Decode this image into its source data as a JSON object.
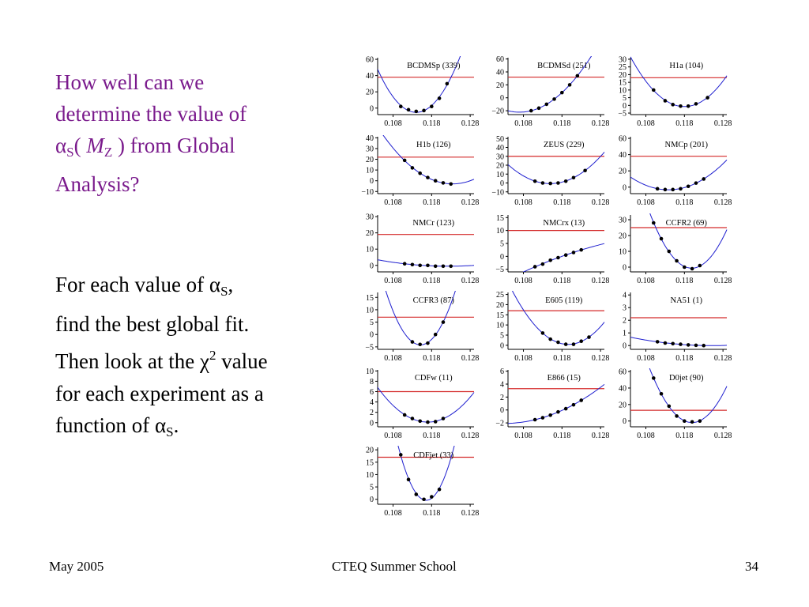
{
  "slide": {
    "heading_lines": [
      "How well can we",
      "determine the value of",
      " from Global",
      "Analysis?"
    ],
    "alpha_symbol": "α",
    "alpha_sub": "S",
    "open_paren": "( ",
    "mz_symbol": "M",
    "mz_sub": "Z",
    "close_paren": " )",
    "body_line1_a": "For each value of ",
    "body_line1_b": ",",
    "body_line2": "find the best global fit.",
    "body_line3_a": "Then look at the ",
    "chi_symbol": "χ",
    "chi_sup": "2",
    "body_line3_b": " value",
    "body_line4": "for each experiment as a",
    "body_line5": "function of ",
    "body_line5_end": ".",
    "colors": {
      "heading": "#7a1a8c",
      "body": "#000000"
    }
  },
  "footer": {
    "left": "May 2005",
    "center": "CTEQ Summer School",
    "right": "34"
  },
  "chart_data": [
    {
      "type": "scatter",
      "title": "BCDMSp (339)",
      "x_ticks": [
        "0.108",
        "0.118",
        "0.128"
      ],
      "y_ticks": [
        "60",
        "40",
        "20",
        "0"
      ],
      "xlim": [
        0.104,
        0.129
      ],
      "ylim": [
        -8,
        62
      ],
      "reference": 38,
      "points": [
        [
          0.11,
          2
        ],
        [
          0.112,
          -2
        ],
        [
          0.114,
          -4
        ],
        [
          0.116,
          -3
        ],
        [
          0.118,
          2
        ],
        [
          0.12,
          12
        ],
        [
          0.122,
          30
        ]
      ]
    },
    {
      "type": "scatter",
      "title": "BCDMSd (251)",
      "x_ticks": [
        "0.108",
        "0.118",
        "0.128"
      ],
      "y_ticks": [
        "60",
        "40",
        "20",
        "0",
        "−20"
      ],
      "xlim": [
        0.104,
        0.129
      ],
      "ylim": [
        -26,
        62
      ],
      "reference": 32,
      "points": [
        [
          0.11,
          -20
        ],
        [
          0.112,
          -16
        ],
        [
          0.114,
          -10
        ],
        [
          0.116,
          -2
        ],
        [
          0.118,
          8
        ],
        [
          0.12,
          20
        ],
        [
          0.122,
          34
        ]
      ]
    },
    {
      "type": "scatter",
      "title": "H1a (104)",
      "x_ticks": [
        "0.108",
        "0.118",
        "0.128"
      ],
      "y_ticks": [
        "30",
        "25",
        "20",
        "15",
        "10",
        "5",
        "0",
        "−5"
      ],
      "xlim": [
        0.104,
        0.129
      ],
      "ylim": [
        -6,
        31
      ],
      "reference": 18,
      "points": [
        [
          0.11,
          10
        ],
        [
          0.113,
          3
        ],
        [
          0.115,
          0.5
        ],
        [
          0.117,
          -0.5
        ],
        [
          0.119,
          -0.5
        ],
        [
          0.121,
          1
        ],
        [
          0.124,
          5
        ]
      ]
    },
    {
      "type": "scatter",
      "title": "H1b (126)",
      "x_ticks": [
        "0.108",
        "0.118",
        "0.128"
      ],
      "y_ticks": [
        "40",
        "30",
        "20",
        "10",
        "0",
        "−10"
      ],
      "xlim": [
        0.104,
        0.129
      ],
      "ylim": [
        -12,
        41
      ],
      "reference": 22,
      "points": [
        [
          0.111,
          19
        ],
        [
          0.113,
          12
        ],
        [
          0.115,
          7
        ],
        [
          0.117,
          3
        ],
        [
          0.119,
          0
        ],
        [
          0.121,
          -2
        ],
        [
          0.123,
          -3
        ]
      ]
    },
    {
      "type": "scatter",
      "title": "ZEUS (229)",
      "x_ticks": [
        "0.108",
        "0.118",
        "0.128"
      ],
      "y_ticks": [
        "50",
        "40",
        "30",
        "20",
        "10",
        "0",
        "−10"
      ],
      "xlim": [
        0.104,
        0.129
      ],
      "ylim": [
        -12,
        52
      ],
      "reference": 30,
      "points": [
        [
          0.111,
          2
        ],
        [
          0.113,
          0
        ],
        [
          0.115,
          -0.5
        ],
        [
          0.117,
          0
        ],
        [
          0.119,
          2
        ],
        [
          0.121,
          6
        ],
        [
          0.124,
          14
        ]
      ]
    },
    {
      "type": "scatter",
      "title": "NMCp (201)",
      "x_ticks": [
        "0.108",
        "0.118",
        "0.128"
      ],
      "y_ticks": [
        "60",
        "40",
        "20",
        "0"
      ],
      "xlim": [
        0.104,
        0.129
      ],
      "ylim": [
        -8,
        62
      ],
      "reference": 38,
      "points": [
        [
          0.111,
          -2
        ],
        [
          0.113,
          -3
        ],
        [
          0.115,
          -3
        ],
        [
          0.117,
          -2
        ],
        [
          0.119,
          1
        ],
        [
          0.121,
          5
        ],
        [
          0.123,
          10
        ]
      ]
    },
    {
      "type": "scatter",
      "title": "NMCr (123)",
      "x_ticks": [
        "0.108",
        "0.118",
        "0.128"
      ],
      "y_ticks": [
        "30",
        "20",
        "10",
        "0"
      ],
      "xlim": [
        0.104,
        0.129
      ],
      "ylim": [
        -4,
        31
      ],
      "reference": 19,
      "points": [
        [
          0.111,
          1
        ],
        [
          0.113,
          0.5
        ],
        [
          0.115,
          0
        ],
        [
          0.117,
          0
        ],
        [
          0.119,
          -0.5
        ],
        [
          0.121,
          -0.5
        ],
        [
          0.123,
          -0.5
        ]
      ]
    },
    {
      "type": "scatter",
      "title": "NMCrx (13)",
      "x_ticks": [
        "0.108",
        "0.118",
        "0.128"
      ],
      "y_ticks": [
        "15",
        "10",
        "5",
        "0",
        "−5"
      ],
      "xlim": [
        0.104,
        0.129
      ],
      "ylim": [
        -6,
        16
      ],
      "reference": 10,
      "points": [
        [
          0.111,
          -4
        ],
        [
          0.113,
          -3
        ],
        [
          0.115,
          -1.5
        ],
        [
          0.117,
          -0.5
        ],
        [
          0.119,
          0.5
        ],
        [
          0.121,
          1.5
        ],
        [
          0.123,
          2.5
        ]
      ]
    },
    {
      "type": "scatter",
      "title": "CCFR2 (69)",
      "x_ticks": [
        "0.108",
        "0.118",
        "0.128"
      ],
      "y_ticks": [
        "30",
        "20",
        "10",
        "0"
      ],
      "xlim": [
        0.104,
        0.129
      ],
      "ylim": [
        -3,
        33
      ],
      "reference": 25,
      "points": [
        [
          0.11,
          28
        ],
        [
          0.112,
          18
        ],
        [
          0.114,
          10
        ],
        [
          0.116,
          4
        ],
        [
          0.118,
          0
        ],
        [
          0.12,
          -1
        ],
        [
          0.122,
          1
        ]
      ]
    },
    {
      "type": "scatter",
      "title": "CCFR3 (87)",
      "x_ticks": [
        "0.108",
        "0.118",
        "0.128"
      ],
      "y_ticks": [
        "15",
        "10",
        "5",
        "0",
        "−5"
      ],
      "xlim": [
        0.104,
        0.129
      ],
      "ylim": [
        -6,
        17
      ],
      "reference": 7,
      "points": [
        [
          0.113,
          -3
        ],
        [
          0.115,
          -4
        ],
        [
          0.117,
          -3.5
        ],
        [
          0.119,
          0
        ],
        [
          0.121,
          5
        ]
      ]
    },
    {
      "type": "scatter",
      "title": "E605 (119)",
      "x_ticks": [
        "0.108",
        "0.118",
        "0.128"
      ],
      "y_ticks": [
        "25",
        "20",
        "15",
        "10",
        "5",
        "0"
      ],
      "xlim": [
        0.104,
        0.129
      ],
      "ylim": [
        -2,
        26
      ],
      "reference": 17,
      "points": [
        [
          0.113,
          6
        ],
        [
          0.115,
          3
        ],
        [
          0.117,
          1.5
        ],
        [
          0.119,
          0.5
        ],
        [
          0.121,
          0.5
        ],
        [
          0.123,
          2
        ],
        [
          0.125,
          4
        ]
      ]
    },
    {
      "type": "scatter",
      "title": "NA51 (1)",
      "x_ticks": [
        "0.108",
        "0.118",
        "0.128"
      ],
      "y_ticks": [
        "4",
        "3",
        "2",
        "1",
        "0"
      ],
      "xlim": [
        0.104,
        0.129
      ],
      "ylim": [
        -0.3,
        4.2
      ],
      "reference": 2.2,
      "points": [
        [
          0.111,
          0.3
        ],
        [
          0.113,
          0.2
        ],
        [
          0.115,
          0.15
        ],
        [
          0.117,
          0.1
        ],
        [
          0.119,
          0.05
        ],
        [
          0.121,
          0.02
        ],
        [
          0.123,
          0
        ]
      ]
    },
    {
      "type": "scatter",
      "title": "CDFw (11)",
      "x_ticks": [
        "0.108",
        "0.118",
        "0.128"
      ],
      "y_ticks": [
        "10",
        "8",
        "6",
        "4",
        "2",
        "0"
      ],
      "xlim": [
        0.104,
        0.129
      ],
      "ylim": [
        -0.8,
        10.2
      ],
      "reference": 6,
      "points": [
        [
          0.111,
          1.5
        ],
        [
          0.113,
          0.8
        ],
        [
          0.115,
          0.3
        ],
        [
          0.117,
          0.1
        ],
        [
          0.119,
          0.2
        ],
        [
          0.121,
          0.8
        ]
      ]
    },
    {
      "type": "scatter",
      "title": "E866 (15)",
      "x_ticks": [
        "0.108",
        "0.118",
        "0.128"
      ],
      "y_ticks": [
        "6",
        "4",
        "2",
        "0",
        "−2"
      ],
      "xlim": [
        0.104,
        0.129
      ],
      "ylim": [
        -2.6,
        6.2
      ],
      "reference": 3.3,
      "points": [
        [
          0.111,
          -1.5
        ],
        [
          0.113,
          -1.2
        ],
        [
          0.115,
          -0.8
        ],
        [
          0.117,
          -0.3
        ],
        [
          0.119,
          0.2
        ],
        [
          0.121,
          0.8
        ],
        [
          0.123,
          1.5
        ]
      ]
    },
    {
      "type": "scatter",
      "title": "D0jet (90)",
      "x_ticks": [
        "0.108",
        "0.118",
        "0.128"
      ],
      "y_ticks": [
        "60",
        "40",
        "20",
        "0"
      ],
      "xlim": [
        0.104,
        0.129
      ],
      "ylim": [
        -7,
        62
      ],
      "reference": 13,
      "points": [
        [
          0.11,
          52
        ],
        [
          0.112,
          33
        ],
        [
          0.114,
          18
        ],
        [
          0.116,
          6
        ],
        [
          0.118,
          0
        ],
        [
          0.12,
          -1
        ],
        [
          0.122,
          0
        ]
      ]
    },
    {
      "type": "scatter",
      "title": "CDFjet (33)",
      "x_ticks": [
        "0.108",
        "0.118",
        "0.128"
      ],
      "y_ticks": [
        "20",
        "15",
        "10",
        "5",
        "0"
      ],
      "xlim": [
        0.104,
        0.129
      ],
      "ylim": [
        -2,
        21
      ],
      "reference": 17,
      "points": [
        [
          0.11,
          18
        ],
        [
          0.112,
          8
        ],
        [
          0.114,
          2
        ],
        [
          0.116,
          0
        ],
        [
          0.118,
          1
        ],
        [
          0.12,
          4
        ]
      ]
    }
  ],
  "chart_style": {
    "axis": "#000000",
    "curve": "#1f1fcf",
    "reference": "#d42a2a",
    "point": "#000000"
  }
}
